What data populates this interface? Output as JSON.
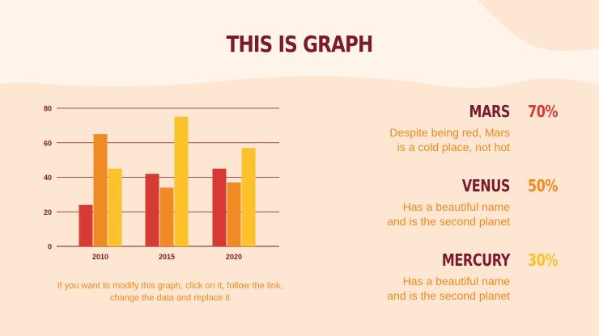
{
  "slide": {
    "title": "THIS IS GRAPH",
    "caption": "If you want to modify this graph, click on it, follow the link, change the data and replace it"
  },
  "planets": [
    {
      "name": "MARS",
      "percent": "70%",
      "color": "#d63a34",
      "desc_line1": "Despite being red, Mars",
      "desc_line2": "is a cold place, not hot"
    },
    {
      "name": "VENUS",
      "percent": "50%",
      "color": "#f08a24",
      "desc_line1": "Has a beautiful name",
      "desc_line2": "and is the second planet"
    },
    {
      "name": "MERCURY",
      "percent": "30%",
      "color": "#fcc22c",
      "desc_line1": "Has a beautiful name",
      "desc_line2": "and is the second planet"
    }
  ],
  "colors": {
    "background": "#fde6d2",
    "blob": "#fef4ea",
    "title": "#7b1a2c",
    "accent": "#ef8a1e"
  },
  "chart_data": {
    "type": "bar",
    "categories": [
      "2010",
      "2015",
      "2020"
    ],
    "series": [
      {
        "values": [
          24,
          42,
          45
        ],
        "color": "#d63a34"
      },
      {
        "values": [
          65,
          34,
          37
        ],
        "color": "#f08a24"
      },
      {
        "values": [
          45,
          75,
          57
        ],
        "color": "#fcc22c"
      }
    ],
    "yticks": [
      0,
      20,
      40,
      60,
      80
    ],
    "ylim": [
      0,
      80
    ],
    "grid": true,
    "legend": "none",
    "title": "",
    "xlabel": "",
    "ylabel": ""
  }
}
